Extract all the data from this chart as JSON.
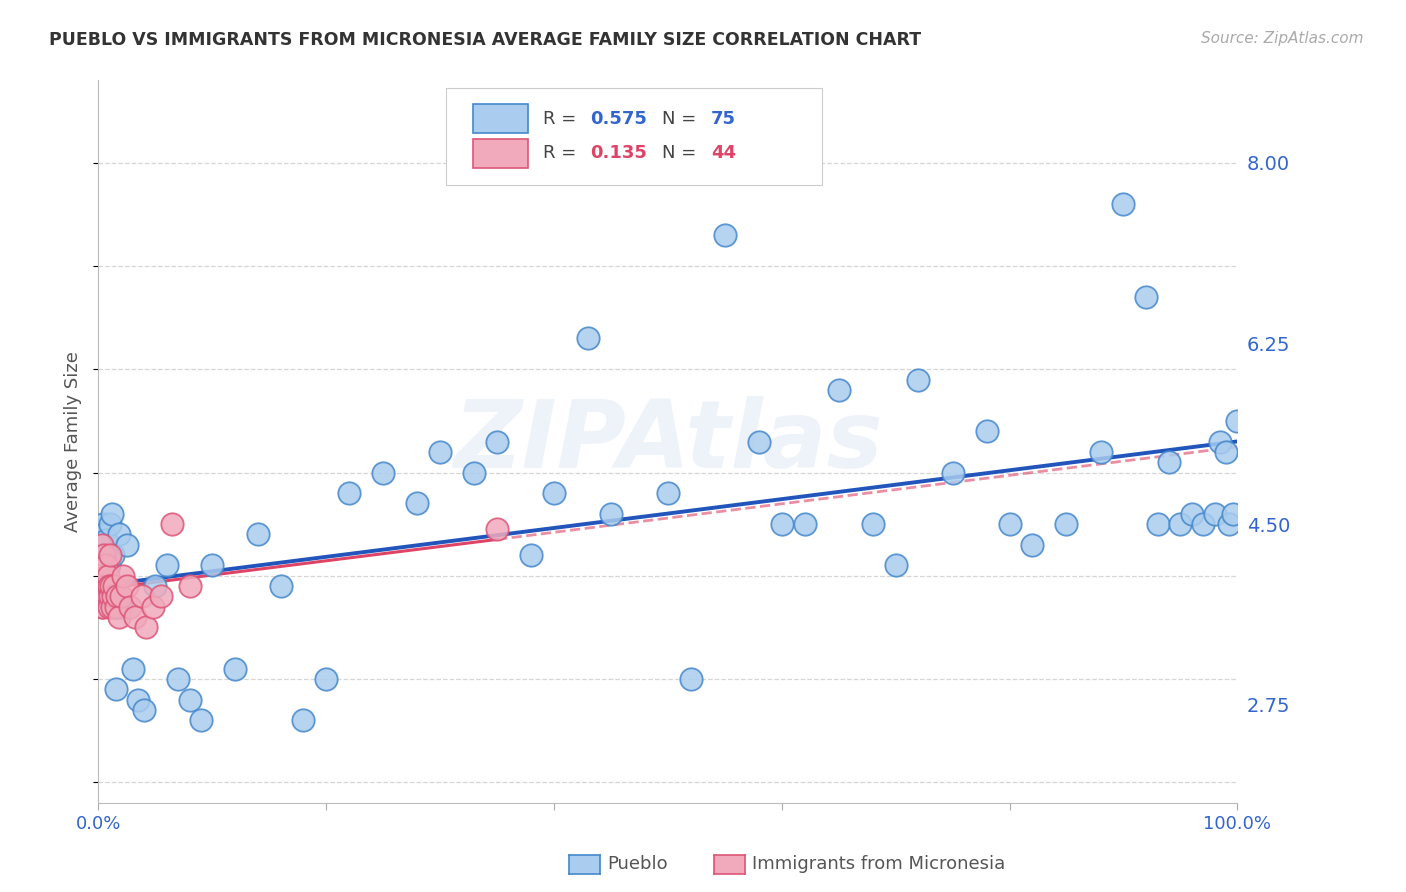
{
  "title": "PUEBLO VS IMMIGRANTS FROM MICRONESIA AVERAGE FAMILY SIZE CORRELATION CHART",
  "source": "Source: ZipAtlas.com",
  "ylabel": "Average Family Size",
  "yticks": [
    2.75,
    4.5,
    6.25,
    8.0
  ],
  "xlim": [
    0.0,
    1.0
  ],
  "ylim": [
    1.8,
    8.8
  ],
  "watermark": "ZIPAtlas",
  "pueblo_color": "#aaccee",
  "pueblo_edge": "#4488cc",
  "micronesia_color": "#f0aabc",
  "micronesia_edge": "#dd5577",
  "pueblo_line_color": "#2255bb",
  "micronesia_line_color": "#dd4466",
  "background_color": "#ffffff",
  "grid_color": "#cccccc",
  "title_color": "#333333",
  "axis_color": "#3366cc",
  "pueblo_R": "0.575",
  "pueblo_N": "75",
  "micronesia_R": "0.135",
  "micronesia_N": "44",
  "pueblo_x": [
    0.002,
    0.003,
    0.004,
    0.004,
    0.005,
    0.005,
    0.006,
    0.006,
    0.007,
    0.007,
    0.008,
    0.008,
    0.009,
    0.01,
    0.01,
    0.012,
    0.013,
    0.015,
    0.015,
    0.018,
    0.02,
    0.025,
    0.03,
    0.035,
    0.04,
    0.05,
    0.06,
    0.07,
    0.08,
    0.09,
    0.1,
    0.12,
    0.14,
    0.16,
    0.18,
    0.2,
    0.22,
    0.25,
    0.28,
    0.3,
    0.33,
    0.35,
    0.38,
    0.4,
    0.43,
    0.45,
    0.5,
    0.52,
    0.55,
    0.58,
    0.6,
    0.62,
    0.65,
    0.68,
    0.7,
    0.72,
    0.75,
    0.78,
    0.8,
    0.82,
    0.85,
    0.88,
    0.9,
    0.92,
    0.93,
    0.94,
    0.95,
    0.96,
    0.97,
    0.98,
    0.985,
    0.99,
    0.993,
    0.996,
    1.0
  ],
  "pueblo_y": [
    4.2,
    4.3,
    4.5,
    4.1,
    4.4,
    4.2,
    4.3,
    4.1,
    4.35,
    4.0,
    4.2,
    3.9,
    4.1,
    4.5,
    3.8,
    4.6,
    4.2,
    3.7,
    2.9,
    4.4,
    3.7,
    4.3,
    3.1,
    2.8,
    2.7,
    3.9,
    4.1,
    3.0,
    2.8,
    2.6,
    4.1,
    3.1,
    4.4,
    3.9,
    2.6,
    3.0,
    4.8,
    5.0,
    4.7,
    5.2,
    5.0,
    5.3,
    4.2,
    4.8,
    6.3,
    4.6,
    4.8,
    3.0,
    7.3,
    5.3,
    4.5,
    4.5,
    5.8,
    4.5,
    4.1,
    5.9,
    5.0,
    5.4,
    4.5,
    4.3,
    4.5,
    5.2,
    7.6,
    6.7,
    4.5,
    5.1,
    4.5,
    4.6,
    4.5,
    4.6,
    5.3,
    5.2,
    4.5,
    4.6,
    5.5
  ],
  "micronesia_x": [
    0.001,
    0.001,
    0.002,
    0.002,
    0.002,
    0.003,
    0.003,
    0.003,
    0.003,
    0.004,
    0.004,
    0.004,
    0.005,
    0.005,
    0.005,
    0.006,
    0.006,
    0.007,
    0.007,
    0.008,
    0.008,
    0.009,
    0.009,
    0.01,
    0.01,
    0.011,
    0.012,
    0.013,
    0.014,
    0.015,
    0.016,
    0.018,
    0.02,
    0.022,
    0.025,
    0.028,
    0.032,
    0.038,
    0.042,
    0.048,
    0.055,
    0.065,
    0.08,
    0.35
  ],
  "micronesia_y": [
    3.9,
    4.1,
    3.8,
    4.2,
    4.0,
    3.7,
    4.3,
    3.9,
    4.0,
    3.8,
    4.1,
    3.7,
    4.2,
    3.8,
    3.9,
    4.0,
    3.8,
    3.9,
    4.1,
    3.8,
    4.0,
    3.7,
    3.9,
    4.2,
    3.8,
    3.9,
    3.7,
    3.8,
    3.9,
    3.7,
    3.8,
    3.6,
    3.8,
    4.0,
    3.9,
    3.7,
    3.6,
    3.8,
    3.5,
    3.7,
    3.8,
    4.5,
    3.9,
    4.45
  ]
}
